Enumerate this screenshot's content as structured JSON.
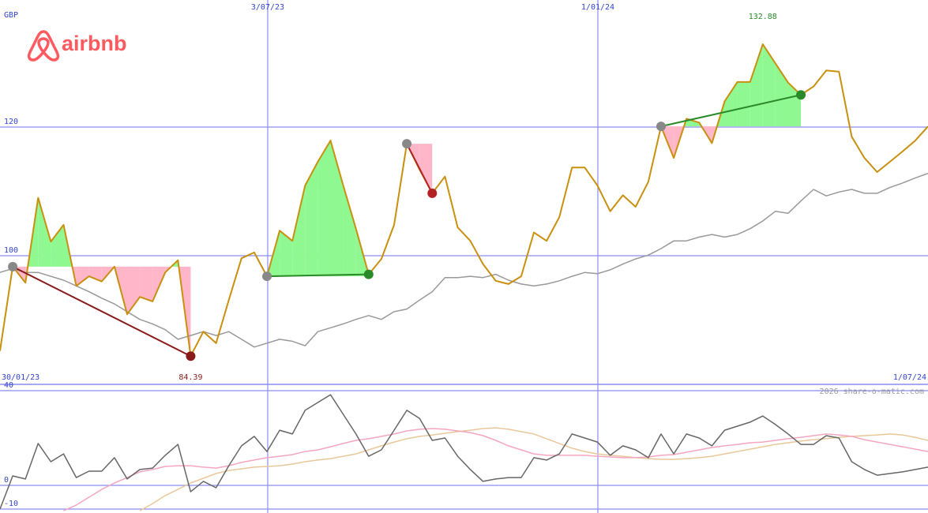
{
  "logo": "airbnb",
  "currency": "GBP",
  "watermark": "2026 share-o-matic.com",
  "chart_data": [
    {
      "type": "line",
      "xlim": [
        0,
        73
      ],
      "xticks": [
        {
          "value": 0,
          "label": "30/01/23"
        },
        {
          "value": 21.06,
          "label": "3/07/23"
        },
        {
          "value": 47.03,
          "label": "1/01/24"
        },
        {
          "value": 73,
          "label": "1/07/24"
        }
      ],
      "ylim": [
        80,
        139.75
      ],
      "yticks": [
        100,
        120
      ],
      "grid": true,
      "series": [
        {
          "color": "#c8900e",
          "values": [
            85.2,
            98.3,
            95.8,
            109.0,
            102.2,
            104.8,
            95.3,
            96.8,
            96.0,
            98.3,
            90.9,
            93.6,
            92.9,
            97.4,
            99.3,
            84.39,
            88.2,
            86.4,
            93.1,
            99.6,
            100.5,
            96.8,
            103.9,
            102.3,
            110.9,
            114.6,
            117.9,
            110.9,
            104.2,
            97.1,
            99.5,
            104.8,
            117.4,
            113.4,
            109.7,
            112.3,
            104.4,
            102.3,
            98.7,
            96.1,
            95.6,
            96.8,
            103.6,
            102.3,
            106.0,
            113.7,
            113.7,
            110.9,
            106.9,
            109.4,
            107.6,
            111.5,
            120.1,
            115.2,
            121.3,
            120.7,
            117.5,
            124.0,
            127.0,
            127.0,
            132.88,
            129.9,
            126.9,
            125.0,
            126.3,
            128.8,
            128.6,
            118.5,
            115.2,
            113.0,
            114.6,
            116.2,
            117.9,
            120.1
          ]
        },
        {
          "color": "#999999",
          "values": [
            97.4,
            98.0,
            97.4,
            97.4,
            96.8,
            96.2,
            95.3,
            94.4,
            93.4,
            92.5,
            91.3,
            90.1,
            89.4,
            88.5,
            87.0,
            87.6,
            88.2,
            87.6,
            88.2,
            87.0,
            85.8,
            86.4,
            87.0,
            86.7,
            86.0,
            88.2,
            88.8,
            89.4,
            90.1,
            90.7,
            90.1,
            91.3,
            91.7,
            93.1,
            94.4,
            96.6,
            96.6,
            96.8,
            96.6,
            97.1,
            96.2,
            95.6,
            95.3,
            95.6,
            96.1,
            96.8,
            97.4,
            97.2,
            97.8,
            98.7,
            99.5,
            100.1,
            101.1,
            102.3,
            102.3,
            102.9,
            103.3,
            102.9,
            103.3,
            104.2,
            105.4,
            106.9,
            106.6,
            108.5,
            110.3,
            109.3,
            109.9,
            110.3,
            109.7,
            109.7,
            110.6,
            111.3,
            112.1,
            112.8
          ]
        }
      ],
      "trades": [
        {
          "x": [
            1,
            15
          ],
          "values": [
            98.3,
            84.39
          ],
          "color": "#8b1a1a"
        },
        {
          "x": [
            21,
            29
          ],
          "values": [
            96.8,
            97.1
          ],
          "color": "#2a8a2a"
        },
        {
          "x": [
            32,
            34
          ],
          "values": [
            117.4,
            109.7
          ],
          "color": "#b22222"
        },
        {
          "x": [
            52,
            63
          ],
          "values": [
            120.1,
            125.0
          ],
          "color": "#2a8a2a"
        }
      ],
      "gain_color": "#90f890",
      "loss_color": "#ffb6c8",
      "annotations": [
        {
          "x": 60,
          "value": 132.88,
          "color": "#2a8a2a",
          "position": "top"
        },
        {
          "x": 15,
          "value": 84.39,
          "color": "#8b1a1a",
          "position": "bottom"
        }
      ]
    },
    {
      "type": "line",
      "xlim": [
        0,
        73
      ],
      "ylim": [
        -11.67,
        42.67
      ],
      "yticks": [
        -10,
        0,
        40
      ],
      "series": [
        {
          "color": "#666666",
          "values": [
            -10,
            4,
            2.7,
            17.7,
            10,
            13.3,
            3.3,
            6,
            6,
            11.7,
            2.7,
            6.7,
            7.3,
            12.7,
            17.3,
            -2.7,
            1.7,
            -1,
            8.3,
            16.7,
            20.7,
            14.3,
            23.3,
            21.7,
            31.7,
            35,
            38.3,
            30,
            21.7,
            12.3,
            15,
            23.3,
            31.7,
            28.3,
            19,
            20,
            12.3,
            6.7,
            1.7,
            2.7,
            3.3,
            3.3,
            11.7,
            10.7,
            13.3,
            21.7,
            20,
            18.3,
            12.7,
            16.7,
            15,
            11.7,
            21.7,
            13.3,
            21.7,
            20,
            16.7,
            23.3,
            25,
            26.7,
            29.3,
            25.7,
            21.7,
            17.3,
            17.3,
            21,
            20,
            10,
            6.7,
            4.3,
            5,
            5.7,
            6.7,
            7.7
          ]
        },
        {
          "color": "#f4a6c0",
          "values": [
            null,
            null,
            null,
            null,
            null,
            -10.7,
            -8.3,
            -5,
            -1.7,
            1,
            3.3,
            5.7,
            6.7,
            8,
            8.3,
            8.3,
            7.7,
            7.3,
            8.3,
            9.7,
            10.7,
            11.7,
            12.3,
            13,
            14.3,
            15,
            16.3,
            17.7,
            19,
            19.7,
            20.7,
            21.7,
            23,
            23.7,
            24,
            23.7,
            23,
            22.3,
            21,
            19,
            16.7,
            15,
            13.3,
            12.7,
            12.7,
            12.7,
            12.7,
            12.3,
            12,
            11.7,
            11.7,
            12,
            12.7,
            13,
            14,
            15,
            16,
            16.7,
            17.3,
            18,
            18.3,
            19,
            19.7,
            20.3,
            21,
            21.7,
            21.3,
            20.7,
            19.3,
            18.3,
            17.3,
            16.3,
            15.3,
            14.3
          ]
        },
        {
          "color": "#e8c89a",
          "values": [
            null,
            null,
            null,
            null,
            null,
            null,
            null,
            null,
            null,
            null,
            null,
            -10.7,
            -7.7,
            -4.3,
            -1.7,
            1,
            3,
            5,
            6.3,
            7,
            7.7,
            8,
            8.3,
            9,
            10,
            10.7,
            11.3,
            12.3,
            13.3,
            15,
            16.7,
            18.3,
            19.7,
            20.7,
            21.3,
            22,
            22.7,
            23.3,
            24,
            24.3,
            23.7,
            22.7,
            21.7,
            19.7,
            17.7,
            15.7,
            14.3,
            13.3,
            12.7,
            12.3,
            11.7,
            11.3,
            11,
            11,
            11.3,
            11.7,
            12.3,
            13.3,
            14.3,
            15.3,
            16.3,
            17.3,
            18,
            18.7,
            19.3,
            19.7,
            20.3,
            20.7,
            21,
            21.3,
            21.7,
            21.3,
            20.3,
            19
          ]
        }
      ]
    }
  ]
}
